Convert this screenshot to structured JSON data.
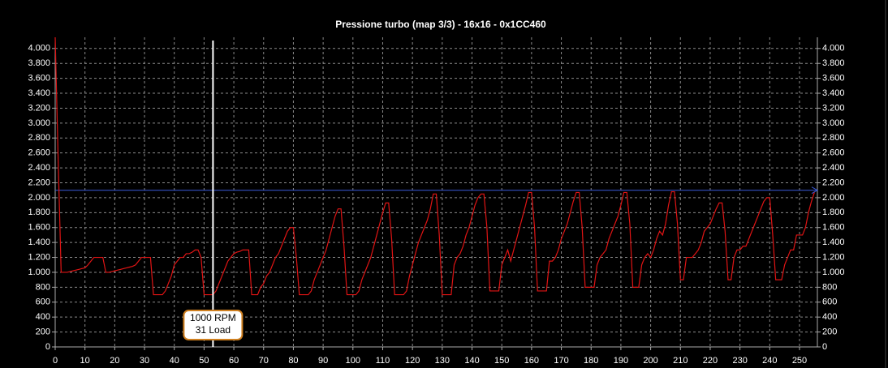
{
  "chart_data": {
    "type": "line",
    "title": "Pressione turbo (map 3/3) - 16x16 - 0x1CC460",
    "x": [
      0,
      1,
      2,
      3,
      4,
      5,
      6,
      7,
      8,
      9,
      10,
      11,
      12,
      13,
      14,
      15,
      16,
      17,
      18,
      19,
      20,
      21,
      22,
      23,
      24,
      25,
      26,
      27,
      28,
      29,
      30,
      31,
      32,
      33,
      34,
      35,
      36,
      37,
      38,
      39,
      40,
      41,
      42,
      43,
      44,
      45,
      46,
      47,
      48,
      49,
      50,
      51,
      52,
      53,
      54,
      55,
      56,
      57,
      58,
      59,
      60,
      61,
      62,
      63,
      64,
      65,
      66,
      67,
      68,
      69,
      70,
      71,
      72,
      73,
      74,
      75,
      76,
      77,
      78,
      79,
      80,
      81,
      82,
      83,
      84,
      85,
      86,
      87,
      88,
      89,
      90,
      91,
      92,
      93,
      94,
      95,
      96,
      97,
      98,
      99,
      100,
      101,
      102,
      103,
      104,
      105,
      106,
      107,
      108,
      109,
      110,
      111,
      112,
      113,
      114,
      115,
      116,
      117,
      118,
      119,
      120,
      121,
      122,
      123,
      124,
      125,
      126,
      127,
      128,
      129,
      130,
      131,
      132,
      133,
      134,
      135,
      136,
      137,
      138,
      139,
      140,
      141,
      142,
      143,
      144,
      145,
      146,
      147,
      148,
      149,
      150,
      151,
      152,
      153,
      154,
      155,
      156,
      157,
      158,
      159,
      160,
      161,
      162,
      163,
      164,
      165,
      166,
      167,
      168,
      169,
      170,
      171,
      172,
      173,
      174,
      175,
      176,
      177,
      178,
      179,
      180,
      181,
      182,
      183,
      184,
      185,
      186,
      187,
      188,
      189,
      190,
      191,
      192,
      193,
      194,
      195,
      196,
      197,
      198,
      199,
      200,
      201,
      202,
      203,
      204,
      205,
      206,
      207,
      208,
      209,
      210,
      211,
      212,
      213,
      214,
      215,
      216,
      217,
      218,
      219,
      220,
      221,
      222,
      223,
      224,
      225,
      226,
      227,
      228,
      229,
      230,
      231,
      232,
      233,
      234,
      235,
      236,
      237,
      238,
      239,
      240,
      241,
      242,
      243,
      244,
      245,
      246,
      247,
      248,
      249,
      250,
      251,
      252,
      253,
      254,
      255
    ],
    "values": [
      4150,
      2500,
      1000,
      1000,
      1000,
      1010,
      1020,
      1030,
      1040,
      1050,
      1060,
      1100,
      1150,
      1200,
      1200,
      1200,
      1200,
      1000,
      1000,
      1010,
      1020,
      1030,
      1040,
      1050,
      1060,
      1070,
      1080,
      1100,
      1150,
      1200,
      1200,
      1200,
      1200,
      700,
      700,
      700,
      700,
      750,
      850,
      950,
      1100,
      1150,
      1200,
      1200,
      1250,
      1250,
      1270,
      1300,
      1300,
      1200,
      700,
      700,
      700,
      700,
      750,
      850,
      950,
      1050,
      1150,
      1200,
      1250,
      1270,
      1280,
      1300,
      1300,
      1300,
      700,
      700,
      700,
      800,
      850,
      950,
      1000,
      1100,
      1200,
      1250,
      1350,
      1450,
      1550,
      1600,
      1600,
      1200,
      700,
      700,
      700,
      700,
      750,
      900,
      1000,
      1100,
      1200,
      1300,
      1450,
      1600,
      1750,
      1850,
      1850,
      1350,
      700,
      700,
      700,
      700,
      750,
      900,
      1000,
      1100,
      1200,
      1350,
      1500,
      1650,
      1800,
      1930,
      1930,
      1450,
      700,
      700,
      700,
      700,
      750,
      950,
      1100,
      1250,
      1400,
      1500,
      1600,
      1700,
      1850,
      2050,
      2050,
      1500,
      700,
      700,
      700,
      700,
      1100,
      1200,
      1250,
      1350,
      1500,
      1600,
      1750,
      1900,
      2000,
      2050,
      2050,
      1600,
      750,
      750,
      750,
      750,
      1100,
      1200,
      1300,
      1150,
      1300,
      1450,
      1600,
      1750,
      1900,
      2070,
      2070,
      1600,
      750,
      750,
      750,
      750,
      1150,
      1150,
      1200,
      1300,
      1450,
      1550,
      1650,
      1800,
      1950,
      2070,
      2070,
      1600,
      800,
      800,
      800,
      800,
      1100,
      1200,
      1250,
      1300,
      1450,
      1550,
      1650,
      1750,
      1900,
      2070,
      2070,
      1650,
      800,
      800,
      800,
      1100,
      1200,
      1250,
      1200,
      1300,
      1450,
      1550,
      1500,
      1650,
      1900,
      2080,
      2080,
      1650,
      900,
      900,
      1200,
      1200,
      1200,
      1250,
      1300,
      1400,
      1550,
      1600,
      1650,
      1750,
      1850,
      1930,
      1930,
      1550,
      900,
      900,
      1200,
      1300,
      1300,
      1350,
      1350,
      1450,
      1550,
      1650,
      1750,
      1850,
      1950,
      2000,
      2000,
      1500,
      900,
      900,
      900,
      1100,
      1200,
      1300,
      1300,
      1500,
      1500,
      1500,
      1600,
      1800,
      1950,
      2070
    ],
    "color": "#e01414",
    "reference_line": 2100,
    "reference_color": "#3a5ad8",
    "cursor": {
      "x": 53,
      "labels": [
        "1000 RPM",
        "31 Load"
      ]
    },
    "xlim": [
      0,
      256
    ],
    "ylim": [
      0,
      4150
    ],
    "xticks": [
      0,
      10,
      20,
      30,
      40,
      50,
      60,
      70,
      80,
      90,
      100,
      110,
      120,
      130,
      140,
      150,
      160,
      170,
      180,
      190,
      200,
      210,
      220,
      230,
      240,
      250
    ],
    "yticks": [
      0,
      200,
      400,
      600,
      800,
      {
        "value": 1000,
        "label": "1.000"
      },
      {
        "value": 1200,
        "label": "1.200"
      },
      {
        "value": 1400,
        "label": "1.400"
      },
      {
        "value": 1600,
        "label": "1.600"
      },
      {
        "value": 1800,
        "label": "1.800"
      },
      {
        "value": 2000,
        "label": "2.000"
      },
      {
        "value": 2200,
        "label": "2.200"
      },
      {
        "value": 2400,
        "label": "2.400"
      },
      {
        "value": 2600,
        "label": "2.600"
      },
      {
        "value": 2800,
        "label": "2.800"
      },
      {
        "value": 3000,
        "label": "3.000"
      },
      {
        "value": 3200,
        "label": "3.200"
      },
      {
        "value": 3400,
        "label": "3.400"
      },
      {
        "value": 3600,
        "label": "3.600"
      },
      {
        "value": 3800,
        "label": "3.800"
      },
      {
        "value": 4000,
        "label": "4.000"
      }
    ],
    "grid": true
  }
}
